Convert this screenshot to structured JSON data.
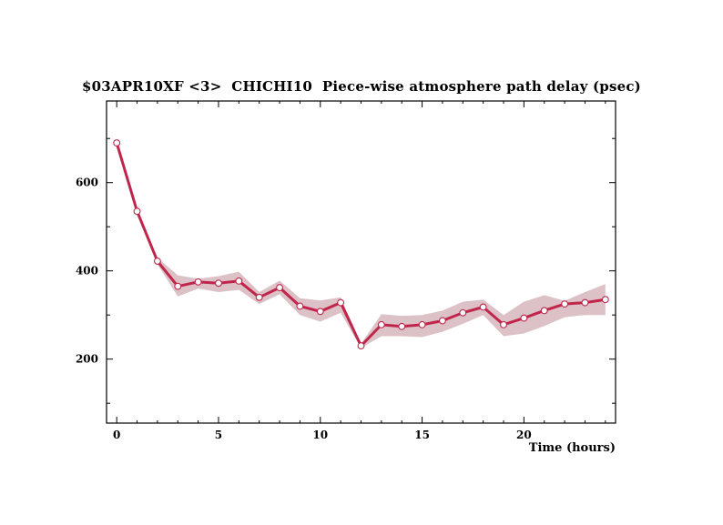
{
  "chart_data": {
    "type": "line",
    "title": "$03APR10XF <3>  CHICHI10  Piece-wise atmosphere path delay (psec)",
    "xlabel": "Time (hours)",
    "ylabel": "",
    "xlim": [
      -0.5,
      24.5
    ],
    "ylim": [
      55,
      785
    ],
    "xticks": [
      0,
      5,
      10,
      15,
      20
    ],
    "yticks": [
      200,
      400,
      600
    ],
    "grid": false,
    "series": [
      {
        "x": [
          0,
          1,
          2,
          3,
          4,
          5,
          6,
          7,
          8,
          9,
          10,
          11,
          12,
          13,
          14,
          15,
          16,
          17,
          18,
          19,
          20,
          21,
          22,
          23,
          24
        ],
        "values": [
          690,
          535,
          422,
          365,
          375,
          372,
          377,
          340,
          362,
          320,
          308,
          328,
          230,
          278,
          274,
          278,
          287,
          305,
          318,
          278,
          293,
          310,
          325,
          328,
          335
        ],
        "lower": [
          680,
          530,
          415,
          342,
          360,
          352,
          357,
          325,
          347,
          300,
          285,
          305,
          225,
          252,
          252,
          250,
          262,
          280,
          300,
          252,
          258,
          275,
          295,
          300,
          300
        ],
        "upper": [
          700,
          542,
          430,
          390,
          382,
          388,
          398,
          352,
          378,
          338,
          333,
          340,
          235,
          302,
          298,
          300,
          310,
          330,
          335,
          300,
          330,
          345,
          332,
          352,
          370
        ]
      }
    ],
    "colors": {
      "line": "#c0264b",
      "band": "#dcc1c6",
      "marker_fill": "#ffffff"
    }
  }
}
